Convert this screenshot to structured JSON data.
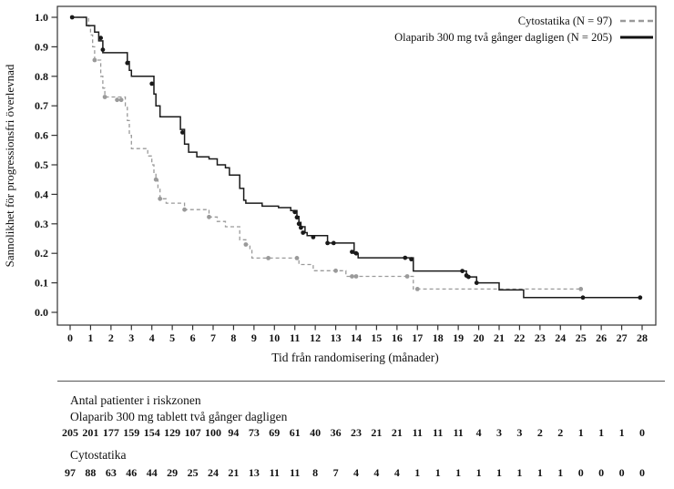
{
  "chart_data": {
    "type": "line",
    "subtype": "kaplan-meier-step",
    "title": "",
    "xlabel": "Tid från randomisering (månader)",
    "ylabel": "Sannolikhet för progressionsfri överlevnad",
    "xlim": [
      0,
      28
    ],
    "ylim": [
      0.0,
      1.0
    ],
    "xticks": [
      0,
      1,
      2,
      3,
      4,
      5,
      6,
      7,
      8,
      9,
      10,
      11,
      12,
      13,
      14,
      15,
      16,
      17,
      18,
      19,
      20,
      21,
      22,
      23,
      24,
      25,
      26,
      27,
      28
    ],
    "yticks": [
      "0.0",
      "0.1",
      "0.2",
      "0.3",
      "0.4",
      "0.5",
      "0.6",
      "0.7",
      "0.8",
      "0.9",
      "1.0"
    ],
    "grid": false,
    "legend_position": "inside-top-right",
    "series": [
      {
        "name": "Cytostatika (N = 97)",
        "style": "dashed",
        "color": "#9a9a9a",
        "steps": [
          [
            0,
            1.0
          ],
          [
            0.9,
            0.97
          ],
          [
            1.0,
            0.94
          ],
          [
            1.1,
            0.9
          ],
          [
            1.2,
            0.855
          ],
          [
            1.5,
            0.8
          ],
          [
            1.6,
            0.76
          ],
          [
            1.7,
            0.73
          ],
          [
            2.7,
            0.7
          ],
          [
            2.8,
            0.65
          ],
          [
            2.9,
            0.6
          ],
          [
            3.0,
            0.555
          ],
          [
            3.8,
            0.53
          ],
          [
            4.0,
            0.5
          ],
          [
            4.1,
            0.47
          ],
          [
            4.2,
            0.45
          ],
          [
            4.3,
            0.42
          ],
          [
            4.4,
            0.385
          ],
          [
            4.7,
            0.37
          ],
          [
            5.6,
            0.348
          ],
          [
            6.8,
            0.323
          ],
          [
            7.2,
            0.308
          ],
          [
            7.6,
            0.29
          ],
          [
            8.3,
            0.246
          ],
          [
            8.6,
            0.23
          ],
          [
            8.8,
            0.21
          ],
          [
            8.9,
            0.184
          ],
          [
            11.2,
            0.162
          ],
          [
            11.9,
            0.141
          ],
          [
            13.5,
            0.122
          ],
          [
            16.8,
            0.079
          ],
          [
            25.0,
            0.079
          ]
        ],
        "censor_marks": [
          [
            1.2,
            0.855
          ],
          [
            1.7,
            0.73
          ],
          [
            2.3,
            0.72
          ],
          [
            2.5,
            0.72
          ],
          [
            4.2,
            0.45
          ],
          [
            4.4,
            0.385
          ],
          [
            5.6,
            0.348
          ],
          [
            6.8,
            0.323
          ],
          [
            8.6,
            0.23
          ],
          [
            9.7,
            0.184
          ],
          [
            11.1,
            0.184
          ],
          [
            13.0,
            0.141
          ],
          [
            13.8,
            0.122
          ],
          [
            14.0,
            0.122
          ],
          [
            16.5,
            0.122
          ],
          [
            17.0,
            0.079
          ],
          [
            25.0,
            0.079
          ]
        ]
      },
      {
        "name": "Olaparib 300 mg två gånger dagligen (N = 205)",
        "style": "solid",
        "color": "#1a1a1a",
        "steps": [
          [
            0,
            1.0
          ],
          [
            0.8,
            0.972
          ],
          [
            1.2,
            0.95
          ],
          [
            1.4,
            0.92
          ],
          [
            1.6,
            0.88
          ],
          [
            2.8,
            0.85
          ],
          [
            2.9,
            0.82
          ],
          [
            3.0,
            0.8
          ],
          [
            4.1,
            0.74
          ],
          [
            4.2,
            0.7
          ],
          [
            4.4,
            0.663
          ],
          [
            5.4,
            0.62
          ],
          [
            5.6,
            0.57
          ],
          [
            5.8,
            0.543
          ],
          [
            6.2,
            0.527
          ],
          [
            6.8,
            0.52
          ],
          [
            7.2,
            0.5
          ],
          [
            7.6,
            0.49
          ],
          [
            7.8,
            0.465
          ],
          [
            8.3,
            0.42
          ],
          [
            8.5,
            0.38
          ],
          [
            8.6,
            0.37
          ],
          [
            9.4,
            0.36
          ],
          [
            10.2,
            0.355
          ],
          [
            10.8,
            0.345
          ],
          [
            11.1,
            0.325
          ],
          [
            11.2,
            0.305
          ],
          [
            11.3,
            0.29
          ],
          [
            11.5,
            0.27
          ],
          [
            11.6,
            0.26
          ],
          [
            12.6,
            0.235
          ],
          [
            13.9,
            0.2
          ],
          [
            14.1,
            0.185
          ],
          [
            16.8,
            0.14
          ],
          [
            19.4,
            0.12
          ],
          [
            19.9,
            0.1
          ],
          [
            21.0,
            0.076
          ],
          [
            22.2,
            0.05
          ],
          [
            27.9,
            0.05
          ]
        ],
        "censor_marks": [
          [
            0.1,
            1.0
          ],
          [
            1.5,
            0.93
          ],
          [
            1.6,
            0.89
          ],
          [
            2.8,
            0.845
          ],
          [
            4.0,
            0.775
          ],
          [
            5.5,
            0.61
          ],
          [
            11.0,
            0.34
          ],
          [
            11.1,
            0.322
          ],
          [
            11.2,
            0.3
          ],
          [
            11.3,
            0.287
          ],
          [
            11.4,
            0.27
          ],
          [
            11.9,
            0.255
          ],
          [
            12.6,
            0.235
          ],
          [
            12.9,
            0.235
          ],
          [
            13.8,
            0.205
          ],
          [
            14.0,
            0.2
          ],
          [
            16.4,
            0.185
          ],
          [
            16.7,
            0.18
          ],
          [
            19.2,
            0.14
          ],
          [
            19.4,
            0.125
          ],
          [
            19.5,
            0.12
          ],
          [
            19.9,
            0.1
          ],
          [
            25.1,
            0.05
          ],
          [
            27.9,
            0.05
          ]
        ]
      }
    ]
  },
  "risk_table": {
    "title": "Antal patienter i riskzonen",
    "rows": [
      {
        "label": "Olaparib 300 mg tablett två gånger dagligen",
        "counts": [
          205,
          201,
          177,
          159,
          154,
          129,
          107,
          100,
          94,
          73,
          69,
          61,
          40,
          36,
          23,
          21,
          21,
          11,
          11,
          11,
          4,
          3,
          3,
          2,
          2,
          1,
          1,
          1,
          0
        ]
      },
      {
        "label": "Cytostatika",
        "counts": [
          97,
          88,
          63,
          46,
          44,
          29,
          25,
          24,
          21,
          13,
          11,
          11,
          8,
          7,
          4,
          4,
          4,
          1,
          1,
          1,
          1,
          1,
          1,
          1,
          1,
          0,
          0,
          0,
          0
        ]
      }
    ]
  }
}
